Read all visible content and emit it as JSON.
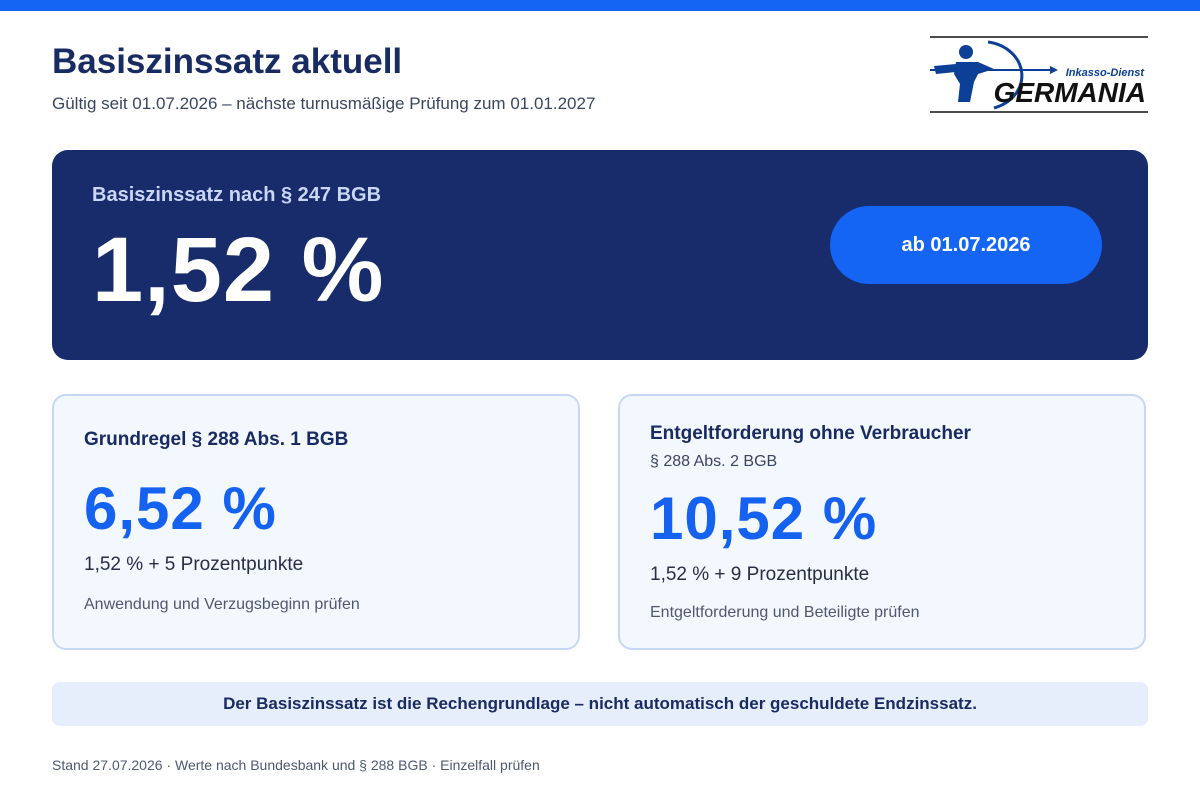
{
  "header": {
    "title": "Basiszinssatz aktuell",
    "subtitle": "Gültig seit 01.07.2026 – nächste turnusmäßige Prüfung zum 01.01.2027"
  },
  "logo": {
    "brand": "GERMANIA",
    "tagline": "Inkasso-Dienst"
  },
  "hero": {
    "label": "Basiszinssatz nach § 247 BGB",
    "value": "1,52 %",
    "badge": "ab 01.07.2026"
  },
  "cards": [
    {
      "title": "Grundregel § 288 Abs. 1 BGB",
      "subtitle": "",
      "value": "6,52 %",
      "formula": "1,52 % + 5 Prozentpunkte",
      "note": "Anwendung und Verzugsbeginn prüfen"
    },
    {
      "title": "Entgeltforderung ohne Verbraucher",
      "subtitle": "§ 288 Abs. 2 BGB",
      "value": "10,52 %",
      "formula": "1,52 % + 9 Prozentpunkte",
      "note": "Entgeltforderung und Beteiligte prüfen"
    }
  ],
  "banner": "Der Basiszinssatz ist die Rechengrundlage – nicht automatisch der geschuldete Endzinssatz.",
  "footer": "Stand 27.07.2026 · Werte nach Bundesbank und § 288 BGB · Einzelfall prüfen",
  "colors": {
    "accent": "#1565f4",
    "navy": "#182b6b",
    "card_bg": "#f3f7fe",
    "card_border": "#c7d8f4",
    "value_blue": "#1662f0"
  }
}
